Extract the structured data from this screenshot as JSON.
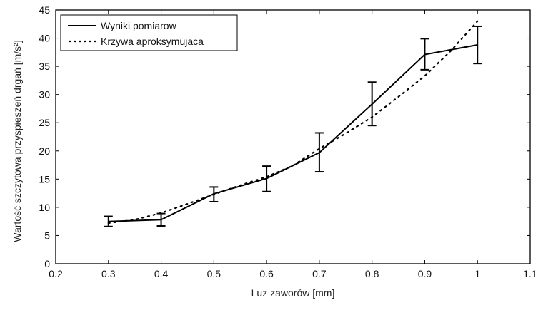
{
  "chart_data": {
    "type": "line",
    "title": "",
    "xlabel": "Luz zaworów [mm]",
    "ylabel": "Wartość szczytowa przyspieszeń drgań [m/s²]",
    "xlim": [
      0.2,
      1.1
    ],
    "ylim": [
      0,
      45
    ],
    "xticks": [
      "0.2",
      "0.3",
      "0.4",
      "0.5",
      "0.6",
      "0.7",
      "0.8",
      "0.9",
      "1",
      "1.1"
    ],
    "yticks": [
      "0",
      "5",
      "10",
      "15",
      "20",
      "25",
      "30",
      "35",
      "40",
      "45"
    ],
    "grid": false,
    "legend_position": "top-left",
    "series": [
      {
        "name": "Wyniki pomiarow",
        "style": "solid",
        "x": [
          0.3,
          0.4,
          0.5,
          0.6,
          0.7,
          0.8,
          0.9,
          1.0
        ],
        "y": [
          7.5,
          7.8,
          12.4,
          15.1,
          19.7,
          28.3,
          37.1,
          38.8
        ],
        "error_low": [
          6.6,
          6.7,
          11.0,
          12.8,
          16.3,
          24.5,
          34.4,
          35.5
        ],
        "error_high": [
          8.4,
          8.9,
          13.6,
          17.3,
          23.2,
          32.2,
          39.9,
          42.1
        ]
      },
      {
        "name": "Krzywa aproksymujaca",
        "style": "dotted",
        "x": [
          0.3,
          0.35,
          0.4,
          0.45,
          0.5,
          0.55,
          0.6,
          0.65,
          0.7,
          0.75,
          0.8,
          0.85,
          0.9,
          0.95,
          1.0
        ],
        "y": [
          7.2,
          7.8,
          9.0,
          10.6,
          12.3,
          13.9,
          15.4,
          17.4,
          20.4,
          23.1,
          26.0,
          29.6,
          33.3,
          37.8,
          43.0
        ]
      }
    ]
  }
}
